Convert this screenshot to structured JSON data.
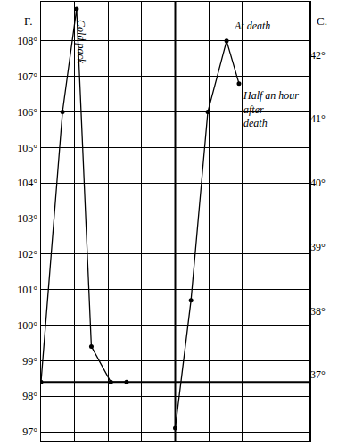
{
  "chart_data": {
    "type": "line",
    "ylabel": "F.",
    "y2label": "C.",
    "xlim": [
      0,
      8
    ],
    "xticks": [
      0,
      1,
      2,
      3,
      4,
      5,
      6,
      7,
      8
    ],
    "ylim": [
      96.75,
      109.1
    ],
    "yticks": [
      {
        "value": 97,
        "label": "97°"
      },
      {
        "value": 98,
        "label": "98°"
      },
      {
        "value": 99,
        "label": "99°"
      },
      {
        "value": 100,
        "label": "100°"
      },
      {
        "value": 101,
        "label": "101°"
      },
      {
        "value": 102,
        "label": "102°"
      },
      {
        "value": 103,
        "label": "103°"
      },
      {
        "value": 104,
        "label": "104°"
      },
      {
        "value": 105,
        "label": "105°"
      },
      {
        "value": 106,
        "label": "106°"
      },
      {
        "value": 107,
        "label": "107°"
      },
      {
        "value": 108,
        "label": "108°"
      }
    ],
    "y2lim": [
      35.97,
      42.83
    ],
    "y2ticks": [
      {
        "value": 37,
        "label": "37°"
      },
      {
        "value": 38,
        "label": "38°"
      },
      {
        "value": 39,
        "label": "39°"
      },
      {
        "value": 40,
        "label": "40°"
      },
      {
        "value": 41,
        "label": "41°"
      },
      {
        "value": 42,
        "label": "42°"
      }
    ],
    "grid": true,
    "tick_labels": "y",
    "hlines": [
      98.4
    ],
    "vlines": [
      4
    ],
    "series": [
      {
        "x": [
          0,
          0.64,
          1.06,
          1.5,
          2.08,
          2.55
        ],
        "values": [
          98.4,
          106,
          108.9,
          99.4,
          98.4,
          98.4
        ],
        "color": "#000000",
        "marker": "circle"
      },
      {
        "x": [
          4.0,
          4.47,
          4.97,
          5.53,
          5.9
        ],
        "values": [
          97.1,
          100.7,
          106,
          108,
          106.8
        ],
        "color": "#000000",
        "marker": "circle"
      }
    ],
    "annotations": [
      {
        "text": [
          "Cold pack"
        ],
        "series": 0,
        "point": 2
      },
      {
        "text": [
          "At death"
        ],
        "series": 1,
        "point": 3
      },
      {
        "text": [
          "Half an hour",
          "after",
          "death"
        ],
        "series": 1,
        "point": 4
      }
    ]
  }
}
